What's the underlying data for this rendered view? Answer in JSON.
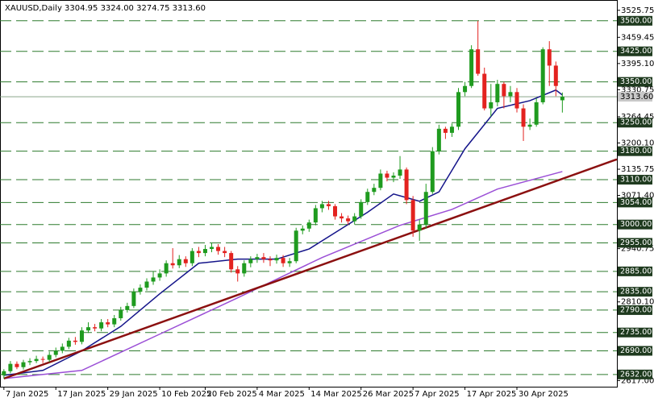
{
  "chart_data": {
    "type": "candlestick",
    "title": "XAUUSD,Daily  3304.95 3324.00 3274.75 3313.60",
    "up_color": "#1f9b1f",
    "down_color": "#e3221f",
    "level_color": "#2d7a2d",
    "x": [
      0,
      1,
      2,
      3,
      4,
      5,
      6,
      7,
      8,
      9,
      10,
      11,
      12,
      13,
      14,
      15,
      16,
      17,
      18,
      19,
      20,
      21,
      22,
      23,
      24,
      25,
      26,
      27,
      28,
      29,
      30,
      31,
      32,
      33,
      34,
      35,
      36,
      37,
      38,
      39,
      40,
      41,
      42,
      43,
      44,
      45,
      46,
      47,
      48,
      49,
      50,
      51,
      52,
      53,
      54,
      55,
      56,
      57,
      58,
      59,
      60,
      61,
      62,
      63,
      64,
      65,
      66,
      67,
      68,
      69,
      70,
      71,
      72,
      73,
      74,
      75,
      76,
      77,
      78,
      79,
      80,
      81,
      82,
      83,
      84,
      85,
      86
    ],
    "open": [
      2630,
      2640,
      2658,
      2650,
      2662,
      2665,
      2670,
      2668,
      2680,
      2690,
      2700,
      2715,
      2712,
      2740,
      2748,
      2745,
      2760,
      2755,
      2770,
      2790,
      2800,
      2835,
      2845,
      2860,
      2870,
      2880,
      2905,
      2900,
      2915,
      2905,
      2935,
      2930,
      2940,
      2945,
      2935,
      2930,
      2890,
      2880,
      2905,
      2915,
      2920,
      2915,
      2912,
      2918,
      2905,
      2910,
      2985,
      2990,
      3005,
      3040,
      3050,
      3045,
      3020,
      3015,
      3008,
      3020,
      3055,
      3080,
      3090,
      3125,
      3115,
      3120,
      3135,
      3060,
      2985,
      3000,
      3080,
      3180,
      3235,
      3225,
      3240,
      3325,
      3340,
      3430,
      3370,
      3285,
      3300,
      3345,
      3315,
      3325,
      3285,
      3240,
      3245,
      3300,
      3430,
      3390,
      3304.95
    ],
    "high": [
      2645,
      2665,
      2664,
      2668,
      2672,
      2678,
      2676,
      2688,
      2698,
      2708,
      2722,
      2724,
      2748,
      2760,
      2756,
      2768,
      2768,
      2778,
      2798,
      2808,
      2843,
      2853,
      2868,
      2885,
      2890,
      2912,
      2942,
      2925,
      2922,
      2942,
      2945,
      2950,
      2955,
      2952,
      2945,
      2935,
      2898,
      2912,
      2922,
      2928,
      2930,
      2922,
      2926,
      2925,
      2918,
      2992,
      2998,
      3012,
      3048,
      3058,
      3058,
      3050,
      3028,
      3022,
      3028,
      3062,
      3088,
      3100,
      3135,
      3132,
      3128,
      3168,
      3140,
      3070,
      3012,
      3100,
      3190,
      3245,
      3240,
      3248,
      3335,
      3350,
      3440,
      3500,
      3385,
      3345,
      3355,
      3350,
      3340,
      3335,
      3295,
      3260,
      3310,
      3435,
      3450,
      3400,
      3324
    ],
    "low": [
      2622,
      2635,
      2645,
      2644,
      2655,
      2660,
      2660,
      2662,
      2674,
      2684,
      2694,
      2705,
      2706,
      2734,
      2738,
      2738,
      2748,
      2748,
      2764,
      2784,
      2795,
      2828,
      2838,
      2852,
      2862,
      2872,
      2892,
      2893,
      2896,
      2898,
      2920,
      2922,
      2932,
      2926,
      2920,
      2882,
      2860,
      2872,
      2895,
      2906,
      2906,
      2898,
      2904,
      2896,
      2896,
      2905,
      2976,
      2982,
      2998,
      3030,
      3036,
      3012,
      3005,
      3000,
      3000,
      3014,
      3048,
      3072,
      3084,
      3106,
      3104,
      3112,
      3050,
      2970,
      2960,
      2990,
      3075,
      3172,
      3210,
      3215,
      3232,
      3315,
      3335,
      3365,
      3280,
      3265,
      3290,
      3285,
      3300,
      3275,
      3205,
      3232,
      3240,
      3295,
      3340,
      3315,
      3274.75
    ],
    "close": [
      2640,
      2658,
      2650,
      2662,
      2665,
      2670,
      2668,
      2680,
      2690,
      2700,
      2715,
      2712,
      2740,
      2748,
      2745,
      2760,
      2755,
      2770,
      2790,
      2800,
      2835,
      2845,
      2860,
      2870,
      2880,
      2905,
      2900,
      2915,
      2905,
      2935,
      2930,
      2940,
      2945,
      2935,
      2930,
      2890,
      2880,
      2905,
      2915,
      2920,
      2915,
      2912,
      2918,
      2905,
      2910,
      2985,
      2990,
      3005,
      3040,
      3050,
      3045,
      3020,
      3015,
      3008,
      3020,
      3055,
      3080,
      3090,
      3125,
      3115,
      3120,
      3135,
      3060,
      2985,
      3000,
      3080,
      3180,
      3235,
      3225,
      3240,
      3325,
      3340,
      3430,
      3370,
      3285,
      3300,
      3345,
      3315,
      3325,
      3285,
      3240,
      3245,
      3300,
      3430,
      3390,
      3340,
      3313.6
    ],
    "lines": [
      {
        "color": "#14148a",
        "x": [
          0,
          6,
          12,
          18,
          24,
          30,
          36,
          42,
          47,
          52,
          56,
          60,
          64,
          67,
          71,
          76,
          81,
          85,
          86
        ],
        "values": [
          2630,
          2642,
          2690,
          2750,
          2830,
          2905,
          2915,
          2915,
          2940,
          2990,
          3030,
          3075,
          3057,
          3080,
          3186,
          3285,
          3304,
          3330,
          3318
        ]
      },
      {
        "color": "#9b4fd6",
        "x": [
          0,
          12,
          24,
          36,
          49,
          61,
          69,
          76,
          86
        ],
        "values": [
          2622,
          2642,
          2731,
          2820,
          2919,
          2998,
          3037,
          3087,
          3130
        ]
      },
      {
        "color": "#8b1010",
        "x": [
          0,
          94.4
        ],
        "values": [
          2622,
          3160
        ]
      }
    ],
    "xlim": [
      -0.6,
      94.4
    ],
    "ylim": [
      2602,
      3551
    ],
    "xticks": [
      {
        "value": 0,
        "label": "7 Jan 2025"
      },
      {
        "value": 8,
        "label": "17 Jan 2025"
      },
      {
        "value": 16,
        "label": "29 Jan 2025"
      },
      {
        "value": 24,
        "label": "10 Feb 2025"
      },
      {
        "value": 31,
        "label": "20 Feb 2025"
      },
      {
        "value": 39,
        "label": "4 Mar 2025"
      },
      {
        "value": 47,
        "label": "14 Mar 2025"
      },
      {
        "value": 55,
        "label": "26 Mar 2025"
      },
      {
        "value": 63,
        "label": "7 Apr 2025"
      },
      {
        "value": 71,
        "label": "17 Apr 2025"
      },
      {
        "value": 79,
        "label": "30 Apr 2025"
      }
    ],
    "yticks": [
      3525.75,
      3459.45,
      {
        "value": 3395.1,
        "label": "3395.10"
      },
      3330.75,
      3264.45,
      {
        "value": 3200.1,
        "label": "3200.10"
      },
      3135.75,
      {
        "value": 3071.4,
        "label": "3071.40"
      },
      2940.75,
      {
        "value": 2810.1,
        "label": "2810.10"
      },
      {
        "value": 2617,
        "label": "2617.00"
      }
    ],
    "levels": [
      {
        "value": 3500,
        "label": "3500.00"
      },
      {
        "value": 3425,
        "label": "3425.00"
      },
      {
        "value": 3350,
        "label": "3350.00"
      },
      {
        "value": 3250,
        "label": "3250.00"
      },
      {
        "value": 3180,
        "label": "3180.00"
      },
      {
        "value": 3110,
        "label": "3110.00"
      },
      {
        "value": 3054,
        "label": "3054.00"
      },
      {
        "value": 3000,
        "label": "3000.00"
      },
      {
        "value": 2955,
        "label": "2955.00"
      },
      {
        "value": 2885,
        "label": "2885.00"
      },
      {
        "value": 2835,
        "label": "2835.00"
      },
      {
        "value": 2790,
        "label": "2790.00"
      },
      {
        "value": 2735,
        "label": "2735.00"
      },
      {
        "value": 2690,
        "label": "2690.00"
      },
      {
        "value": 2632,
        "label": "2632.00"
      }
    ],
    "current": {
      "value": 3313.6,
      "label": "3313.60"
    }
  }
}
